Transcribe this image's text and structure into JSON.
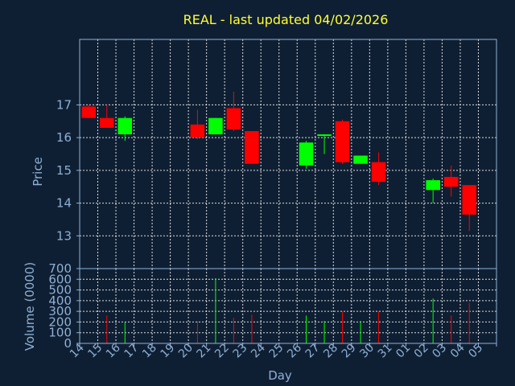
{
  "chart_data": {
    "type": "candlestick",
    "title": "REAL - last updated 04/02/2026",
    "xlabel": "Day",
    "price": {
      "ylabel": "Price",
      "ylim": [
        12.0,
        19.0
      ],
      "yticks": [
        13,
        14,
        15,
        16,
        17
      ]
    },
    "volume": {
      "ylabel": "Volume (0000)",
      "ylim": [
        0,
        700
      ],
      "yticks": [
        0,
        100,
        200,
        300,
        400,
        500,
        600,
        700
      ]
    },
    "x_ticks": [
      "14",
      "15",
      "16",
      "17",
      "18",
      "19",
      "20",
      "21",
      "22",
      "23",
      "24",
      "25",
      "26",
      "27",
      "28",
      "29",
      "30",
      "31",
      "01",
      "02",
      "03",
      "04",
      "05"
    ],
    "grid": true,
    "colors": {
      "up": "#00ff00",
      "down": "#ff0000"
    },
    "candles": [
      {
        "x": 0,
        "open": 16.95,
        "high": 17.0,
        "low": 16.6,
        "close": 16.6,
        "volume": 0
      },
      {
        "x": 1,
        "open": 16.6,
        "high": 17.0,
        "low": 16.3,
        "close": 16.3,
        "volume": 260
      },
      {
        "x": 2,
        "open": 16.1,
        "high": 16.65,
        "low": 15.9,
        "close": 16.6,
        "volume": 200
      },
      {
        "x": 6,
        "open": 16.4,
        "high": 16.85,
        "low": 15.95,
        "close": 16.0,
        "volume": 210
      },
      {
        "x": 7,
        "open": 16.1,
        "high": 16.6,
        "low": 16.1,
        "close": 16.6,
        "volume": 610
      },
      {
        "x": 8,
        "open": 16.9,
        "high": 17.4,
        "low": 16.2,
        "close": 16.25,
        "volume": 240
      },
      {
        "x": 9,
        "open": 16.2,
        "high": 16.2,
        "low": 15.2,
        "close": 15.2,
        "volume": 270
      },
      {
        "x": 12,
        "open": 15.15,
        "high": 15.9,
        "low": 15.05,
        "close": 15.85,
        "volume": 260
      },
      {
        "x": 13,
        "open": 16.05,
        "high": 16.1,
        "low": 15.5,
        "close": 16.1,
        "volume": 210
      },
      {
        "x": 14,
        "open": 16.5,
        "high": 16.55,
        "low": 15.2,
        "close": 15.25,
        "volume": 300
      },
      {
        "x": 15,
        "open": 15.2,
        "high": 15.45,
        "low": 15.2,
        "close": 15.45,
        "volume": 210
      },
      {
        "x": 16,
        "open": 15.25,
        "high": 15.55,
        "low": 14.55,
        "close": 14.65,
        "volume": 300
      },
      {
        "x": 19,
        "open": 14.4,
        "high": 14.75,
        "low": 14.0,
        "close": 14.7,
        "volume": 420
      },
      {
        "x": 20,
        "open": 14.8,
        "high": 15.15,
        "low": 14.2,
        "close": 14.5,
        "volume": 260
      },
      {
        "x": 21,
        "open": 14.55,
        "high": 14.55,
        "low": 13.15,
        "close": 13.65,
        "volume": 380
      }
    ]
  }
}
